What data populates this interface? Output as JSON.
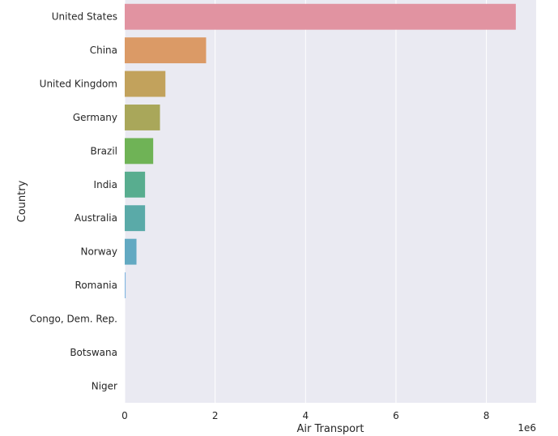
{
  "chart_data": {
    "type": "bar",
    "orientation": "horizontal",
    "xlabel": "Air Transport",
    "ylabel": "Country",
    "x_offset_label": "1e6",
    "xlim": [
      0,
      9.1
    ],
    "x_unit_multiplier": 1000000,
    "xticks": [
      "0",
      "2",
      "4",
      "6",
      "8"
    ],
    "grid": true,
    "categories": [
      "United States",
      "China",
      "United Kingdom",
      "Germany",
      "Brazil",
      "India",
      "Australia",
      "Norway",
      "Romania",
      "Congo, Dem. Rep.",
      "Botswana",
      "Niger"
    ],
    "values": [
      8.65,
      1.8,
      0.9,
      0.78,
      0.63,
      0.45,
      0.45,
      0.26,
      0.02,
      0.0,
      0.0,
      0.0
    ],
    "colors": [
      "#e193a1",
      "#db9a66",
      "#c2a25c",
      "#a9a75a",
      "#6fb356",
      "#58ad8f",
      "#5aaaa8",
      "#62a9c2",
      "#80b5e0",
      "#c4a8e8",
      "#d8a4e4",
      "#e3a2d6"
    ],
    "background_color": "#eaeaf2",
    "grid_color": "#ffffff"
  }
}
